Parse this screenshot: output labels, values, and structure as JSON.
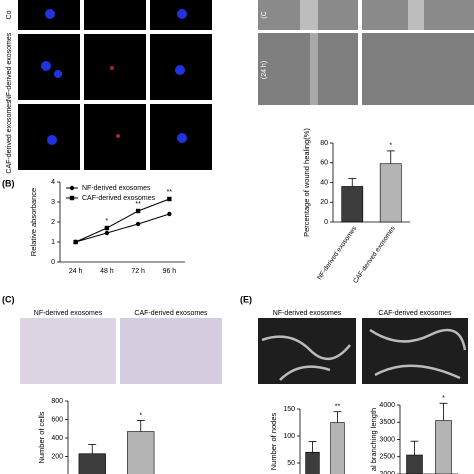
{
  "panels": {
    "a_row_labels": [
      "Co",
      "NF-derived exosomes",
      "CAF-derived exosomes"
    ],
    "wound_labels": [
      "(C",
      "(24 h)"
    ],
    "b_label": "(B)",
    "c_label": "(C)",
    "c_images": [
      "NF-derived exosomes",
      "CAF-derived exosomes"
    ],
    "e_label": "(E)",
    "e_images": [
      "NF-derived exosomes",
      "CAF-derived exosomes"
    ]
  },
  "chart_data": [
    {
      "type": "line",
      "ylabel": "Relative absorbance",
      "categories": [
        "24 h",
        "48 h",
        "72 h",
        "96 h"
      ],
      "series": [
        {
          "name": "NF-derived exosomes",
          "color": "#000000",
          "marker": "circle",
          "values": [
            1,
            1.45,
            1.9,
            2.4
          ]
        },
        {
          "name": "CAF-derived exosomes",
          "color": "#000000",
          "marker": "square",
          "values": [
            1,
            1.7,
            2.55,
            3.15
          ]
        }
      ],
      "significance": [
        null,
        "*",
        "**",
        "**"
      ],
      "ylim": [
        0,
        4
      ],
      "yticks": [
        0,
        1,
        2,
        3,
        4
      ]
    },
    {
      "type": "bar",
      "ylabel": "Percentage of wound healing(%)",
      "categories": [
        "NF-derived exosomes",
        "CAF-derived exosomes"
      ],
      "values": [
        36,
        59
      ],
      "errors": [
        8,
        13
      ],
      "colors": [
        "#3c3c3c",
        "#b4b4b4"
      ],
      "significance": [
        null,
        "*"
      ],
      "ylim": [
        0,
        80
      ],
      "yticks": [
        0,
        20,
        40,
        60,
        80
      ]
    },
    {
      "type": "bar",
      "ylabel": "Number of cells",
      "values": [
        230,
        470
      ],
      "errors": [
        100,
        120
      ],
      "colors": [
        "#3c3c3c",
        "#b4b4b4"
      ],
      "significance": [
        null,
        "*"
      ],
      "ylim": [
        0,
        800
      ],
      "yticks": [
        200,
        400,
        600,
        800
      ]
    },
    {
      "type": "bar",
      "ylabel": "Number of nodes",
      "values": [
        70,
        125
      ],
      "errors": [
        20,
        20
      ],
      "colors": [
        "#3c3c3c",
        "#b4b4b4"
      ],
      "significance": [
        null,
        "**"
      ],
      "ylim": [
        0,
        150
      ],
      "yticks": [
        50,
        100,
        150
      ]
    },
    {
      "type": "bar",
      "ylabel": "al branching length",
      "values": [
        2550,
        3550
      ],
      "errors": [
        400,
        500
      ],
      "colors": [
        "#3c3c3c",
        "#b4b4b4"
      ],
      "significance": [
        null,
        "*"
      ],
      "ylim": [
        2000,
        4000
      ],
      "yticks": [
        2000,
        2500,
        3000,
        3500,
        4000
      ]
    }
  ]
}
